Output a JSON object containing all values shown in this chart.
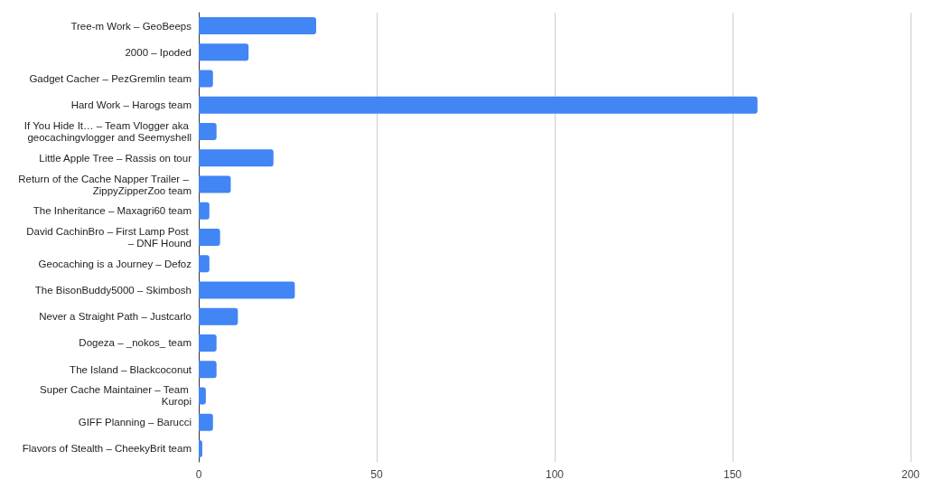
{
  "chart_data": {
    "type": "bar",
    "orientation": "horizontal",
    "categories": [
      "Tree-m Work – GeoBeeps",
      "2000 – Ipoded",
      "Gadget Cacher – PezGremlin team",
      "Hard Work – Harogs team",
      "If You Hide It… – Team Vlogger aka geocachingvlogger and Seemyshell",
      "Little Apple Tree – Rassis on tour",
      "Return of the Cache Napper Trailer – ZippyZipperZoo team",
      "The Inheritance – Maxagri60 team",
      "David CachinBro – First Lamp Post – DNF Hound",
      "Geocaching is a Journey – Defoz",
      "The BisonBuddy5000 – Skimbosh",
      "Never a Straight Path – Justcarlo",
      "Dogeza – _nokos_ team",
      "The Island – Blackcoconut",
      "Super Cache Maintainer – Team Kuropi",
      "GIFF Planning – Barucci",
      "Flavors of Stealth – CheekyBrit team"
    ],
    "values": [
      33,
      14,
      4,
      157,
      5,
      21,
      9,
      3,
      6,
      3,
      27,
      11,
      5,
      5,
      2,
      4,
      1
    ],
    "color": "#4285f4",
    "xlim": [
      0,
      200
    ],
    "xticks": [
      0,
      50,
      100,
      150,
      200
    ],
    "grid": "x"
  }
}
